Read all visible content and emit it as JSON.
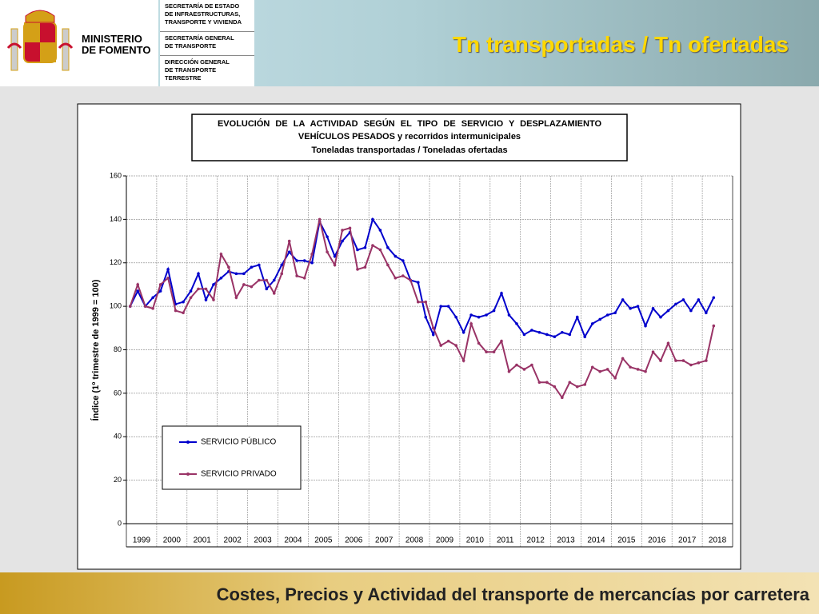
{
  "header": {
    "ministry": "MINISTERIO\nDE FOMENTO",
    "departments": [
      "SECRETARÍA DE ESTADO\nDE INFRAESTRUCTURAS,\nTRANSPORTE Y VIVIENDA",
      "SECRETARÍA GENERAL\nDE TRANSPORTE",
      "DIRECCIÓN GENERAL\nDE TRANSPORTE\nTERRESTRE"
    ],
    "title": "Tn transportadas / Tn ofertadas"
  },
  "footer": "Costes, Precios y Actividad del transporte de mercancías por carretera",
  "chart_data": {
    "type": "line",
    "title": [
      "EVOLUCIÓN DE LA ACTIVIDAD SEGÚN EL TIPO DE SERVICIO Y DESPLAZAMIENTO",
      "VEHÍCULOS PESADOS y recorridos intermunicipales",
      "Toneladas transportadas / Toneladas ofertadas"
    ],
    "y_label": "Índice (1º trimestre de 1999 = 100)",
    "categories": [
      "1999",
      null,
      null,
      null,
      "2000",
      null,
      null,
      null,
      "2001",
      null,
      null,
      null,
      "2002",
      null,
      null,
      null,
      "2003",
      null,
      null,
      null,
      "2004",
      null,
      null,
      null,
      "2005",
      null,
      null,
      null,
      "2006",
      null,
      null,
      null,
      "2007",
      null,
      null,
      null,
      "2008",
      null,
      null,
      null,
      "2009",
      null,
      null,
      null,
      "2010",
      null,
      null,
      null,
      "2011",
      null,
      null,
      null,
      "2012",
      null,
      null,
      null,
      "2013",
      null,
      null,
      null,
      "2014",
      null,
      null,
      null,
      "2015",
      null,
      null,
      null,
      "2016",
      null,
      null,
      null,
      "2017",
      null,
      null,
      null,
      "2018",
      null
    ],
    "series": [
      {
        "name": "SERVICIO PÚBLICO",
        "color": "#0000cc",
        "values": [
          100,
          107,
          100,
          104,
          107,
          117,
          101,
          102,
          107,
          115,
          103,
          110,
          113,
          116,
          115,
          115,
          118,
          119,
          108,
          112,
          119,
          125,
          121,
          121,
          120,
          139,
          132,
          123,
          130,
          134,
          126,
          127,
          140,
          135,
          127,
          123,
          121,
          112,
          111,
          95,
          87,
          100,
          100,
          95,
          88,
          96,
          95,
          96,
          98,
          106,
          96,
          92,
          87,
          89,
          88,
          87,
          86,
          88,
          87,
          95,
          86,
          92,
          94,
          96,
          97,
          103,
          99,
          100,
          91,
          99,
          95,
          98,
          101,
          103,
          98,
          103,
          97,
          104
        ]
      },
      {
        "name": "SERVICIO PRIVADO",
        "color": "#993366",
        "values": [
          100,
          110,
          100,
          99,
          110,
          113,
          98,
          97,
          104,
          108,
          108,
          103,
          124,
          118,
          104,
          110,
          109,
          112,
          112,
          106,
          115,
          130,
          114,
          113,
          124,
          140,
          125,
          119,
          135,
          136,
          117,
          118,
          128,
          126,
          119,
          113,
          114,
          112,
          102,
          102,
          90,
          82,
          84,
          82,
          75,
          92,
          83,
          79,
          79,
          84,
          70,
          73,
          71,
          73,
          65,
          65,
          63,
          58,
          65,
          63,
          64,
          72,
          70,
          71,
          67,
          76,
          72,
          71,
          70,
          79,
          75,
          83,
          75,
          75,
          73,
          74,
          75,
          91
        ]
      }
    ],
    "ylim": [
      0,
      160
    ],
    "yticks": [
      0,
      20,
      40,
      60,
      80,
      100,
      120,
      140,
      160
    ],
    "grid": true
  }
}
